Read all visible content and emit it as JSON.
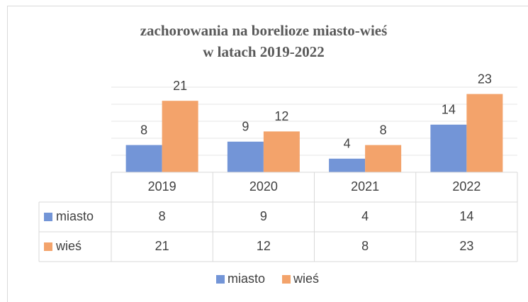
{
  "chart_data": {
    "type": "bar",
    "title": [
      "zachorowania na borelioze miasto-wieś",
      "w latach 2019-2022"
    ],
    "categories": [
      "2019",
      "2020",
      "2021",
      "2022"
    ],
    "series": [
      {
        "name": "miasto",
        "color": "#7395d7",
        "values": [
          8,
          9,
          4,
          14
        ]
      },
      {
        "name": "wieś",
        "color": "#f3a36b",
        "values": [
          21,
          12,
          8,
          23
        ]
      }
    ],
    "ylim": [
      0,
      25
    ],
    "yticks": [
      0,
      5,
      10,
      15,
      20,
      25
    ],
    "grid": true,
    "legend": "bottom"
  }
}
